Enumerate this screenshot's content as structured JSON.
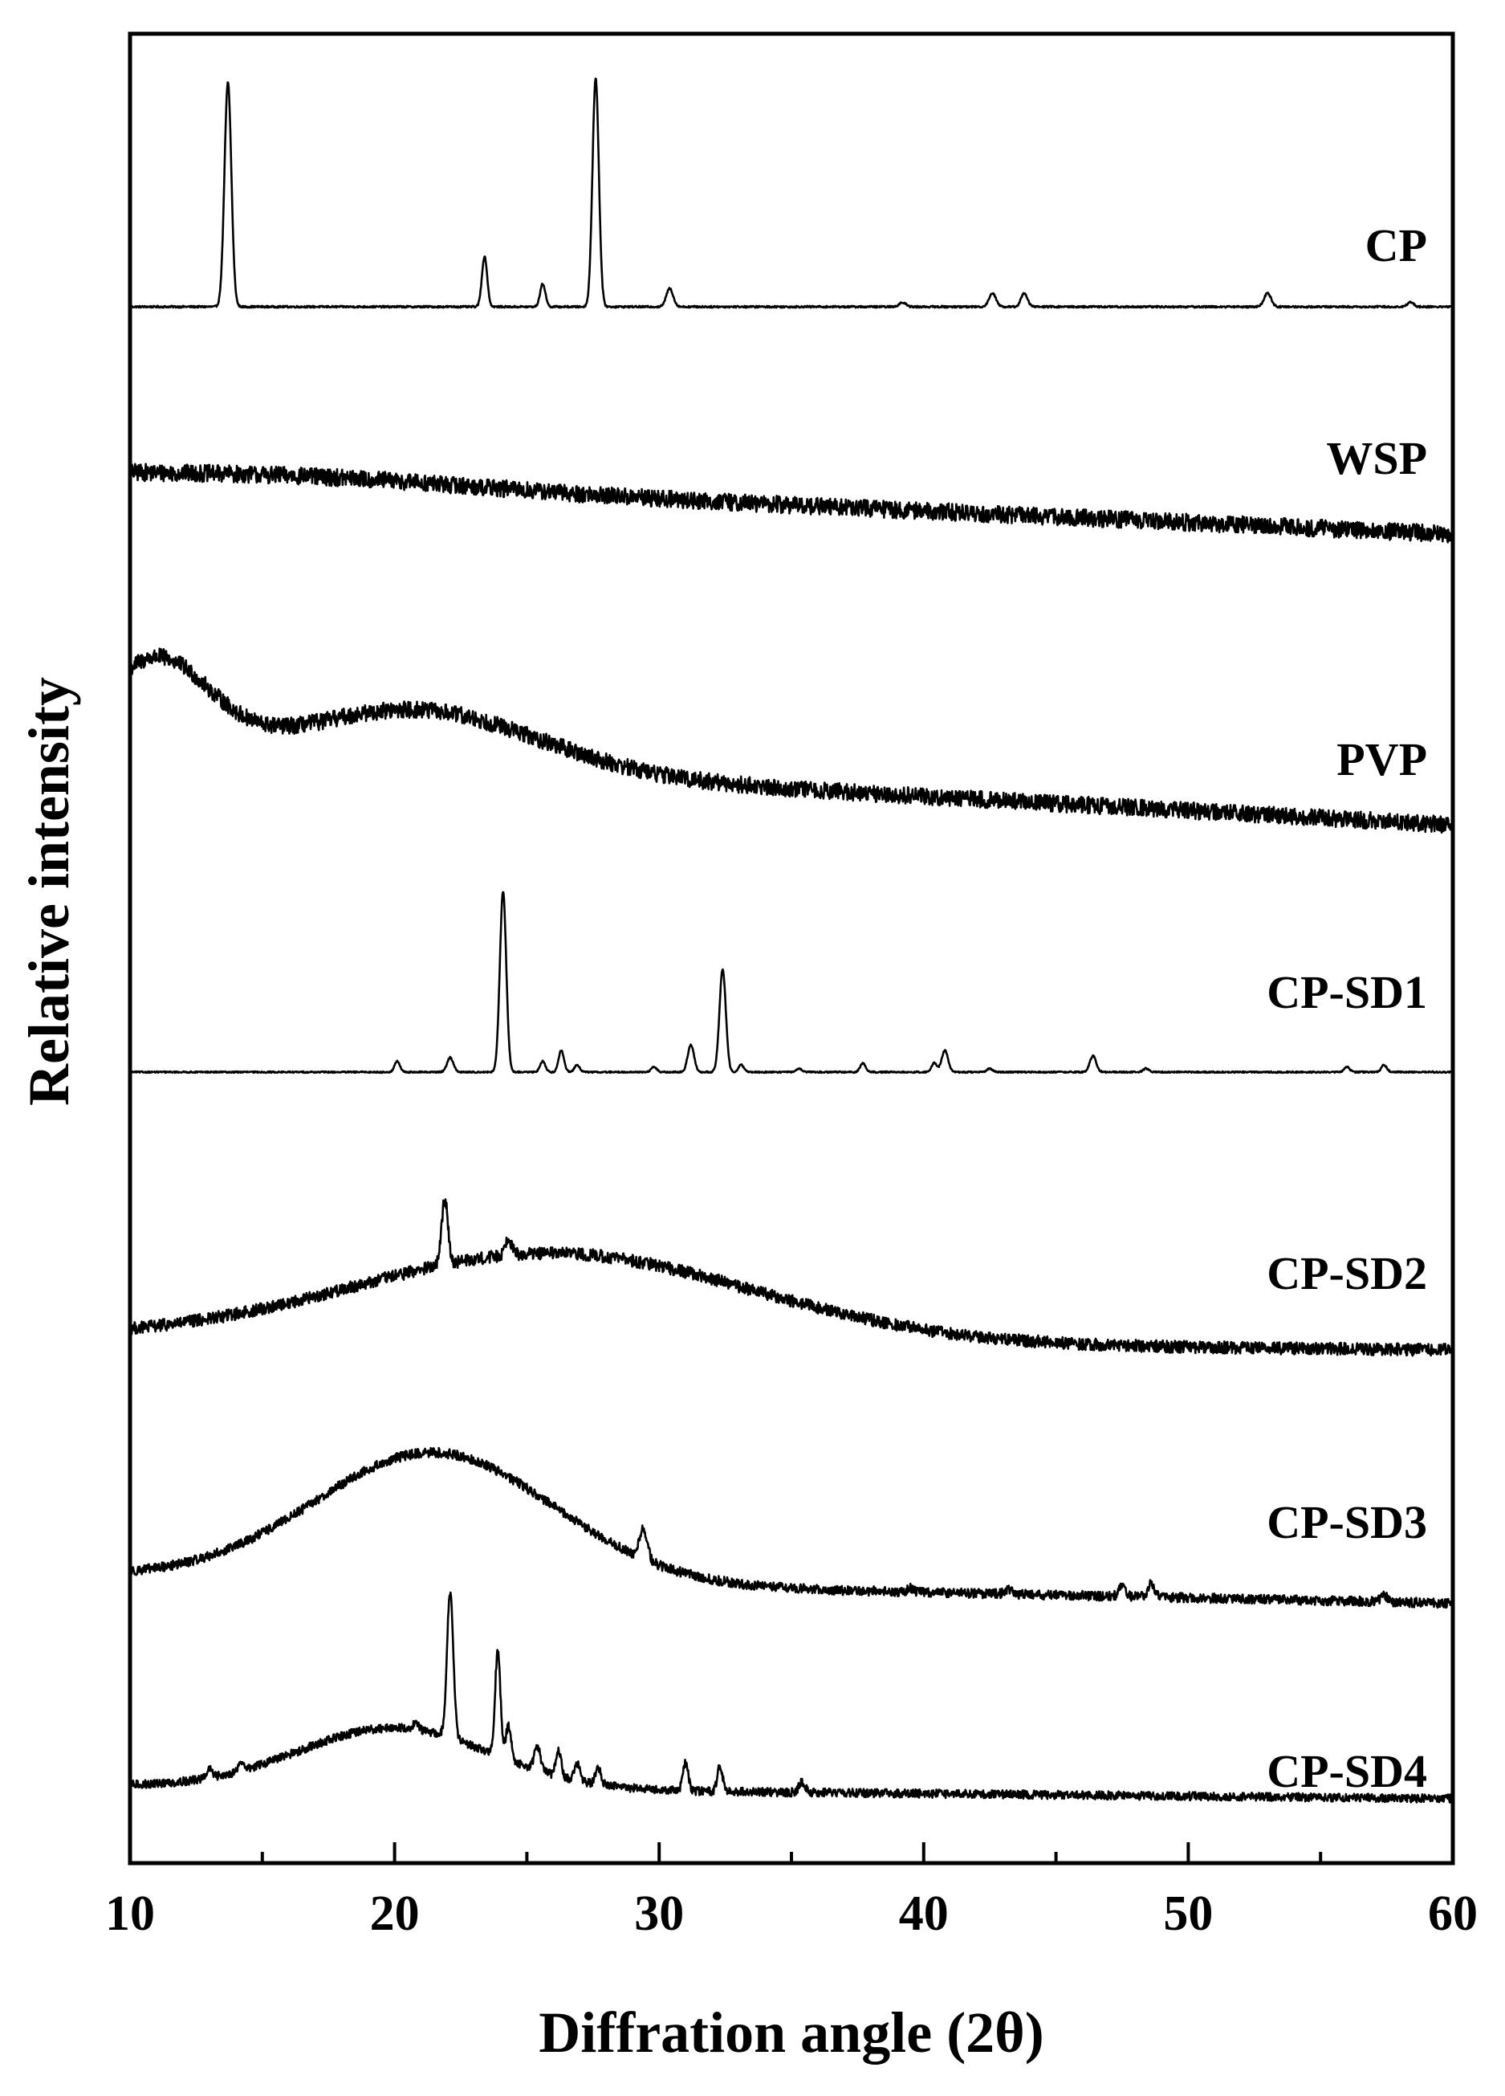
{
  "chart_data": {
    "type": "line",
    "xlabel": "Diffration angle (2θ)",
    "ylabel": "Relative intensity",
    "xlim": [
      10,
      60
    ],
    "x_ticks": [
      10,
      20,
      30,
      40,
      50,
      60
    ],
    "grid": false,
    "legend": "labels at right end of each trace",
    "line_color": "#000000",
    "series": [
      {
        "name": "CP",
        "baseline": 0.0,
        "slope": 0.0,
        "noise": 0.004,
        "humps": [],
        "peaks": [
          {
            "x": 13.7,
            "h": 0.98,
            "w": 0.13
          },
          {
            "x": 23.4,
            "h": 0.22,
            "w": 0.1
          },
          {
            "x": 25.6,
            "h": 0.1,
            "w": 0.1
          },
          {
            "x": 27.6,
            "h": 1.0,
            "w": 0.12
          },
          {
            "x": 30.4,
            "h": 0.08,
            "w": 0.13
          },
          {
            "x": 39.2,
            "h": 0.02,
            "w": 0.12
          },
          {
            "x": 42.6,
            "h": 0.06,
            "w": 0.13
          },
          {
            "x": 43.8,
            "h": 0.06,
            "w": 0.12
          },
          {
            "x": 53.0,
            "h": 0.06,
            "w": 0.13
          },
          {
            "x": 58.4,
            "h": 0.02,
            "w": 0.12
          }
        ]
      },
      {
        "name": "WSP",
        "baseline": 0.3,
        "slope": -0.006,
        "noise": 0.045,
        "humps": [
          {
            "x": 17.0,
            "h": 0.04,
            "w": 6.0
          }
        ],
        "peaks": []
      },
      {
        "name": "PVP",
        "baseline": 0.5,
        "slope": -0.0085,
        "noise": 0.05,
        "humps": [
          {
            "x": 11.0,
            "h": 0.55,
            "w": 2.0
          },
          {
            "x": 21.0,
            "h": 0.35,
            "w": 4.5
          }
        ],
        "peaks": []
      },
      {
        "name": "CP-SD1",
        "baseline": 0.0,
        "slope": 0.0,
        "noise": 0.004,
        "humps": [],
        "peaks": [
          {
            "x": 20.1,
            "h": 0.06,
            "w": 0.1
          },
          {
            "x": 22.1,
            "h": 0.08,
            "w": 0.12
          },
          {
            "x": 24.1,
            "h": 1.0,
            "w": 0.12
          },
          {
            "x": 25.6,
            "h": 0.06,
            "w": 0.1
          },
          {
            "x": 26.3,
            "h": 0.12,
            "w": 0.1
          },
          {
            "x": 26.9,
            "h": 0.04,
            "w": 0.1
          },
          {
            "x": 29.8,
            "h": 0.03,
            "w": 0.1
          },
          {
            "x": 31.2,
            "h": 0.15,
            "w": 0.12
          },
          {
            "x": 32.4,
            "h": 0.57,
            "w": 0.12
          },
          {
            "x": 33.1,
            "h": 0.04,
            "w": 0.1
          },
          {
            "x": 35.3,
            "h": 0.02,
            "w": 0.1
          },
          {
            "x": 37.7,
            "h": 0.05,
            "w": 0.1
          },
          {
            "x": 40.4,
            "h": 0.05,
            "w": 0.1
          },
          {
            "x": 40.8,
            "h": 0.12,
            "w": 0.12
          },
          {
            "x": 42.5,
            "h": 0.02,
            "w": 0.1
          },
          {
            "x": 46.4,
            "h": 0.09,
            "w": 0.12
          },
          {
            "x": 48.4,
            "h": 0.02,
            "w": 0.1
          },
          {
            "x": 56.0,
            "h": 0.03,
            "w": 0.1
          },
          {
            "x": 57.4,
            "h": 0.04,
            "w": 0.1
          }
        ]
      },
      {
        "name": "CP-SD2",
        "baseline": 0.12,
        "slope": -0.0014,
        "noise": 0.035,
        "humps": [
          {
            "x": 26.0,
            "h": 0.5,
            "w": 7.5
          }
        ],
        "peaks": [
          {
            "x": 21.9,
            "h": 0.37,
            "w": 0.12
          },
          {
            "x": 24.3,
            "h": 0.1,
            "w": 0.12
          }
        ]
      },
      {
        "name": "CP-SD3",
        "baseline": 0.28,
        "slope": -0.004,
        "noise": 0.035,
        "humps": [
          {
            "x": 21.5,
            "h": 0.95,
            "w": 4.5
          }
        ],
        "peaks": [
          {
            "x": 29.4,
            "h": 0.22,
            "w": 0.15
          },
          {
            "x": 39.5,
            "h": 0.03,
            "w": 0.12
          },
          {
            "x": 43.2,
            "h": 0.04,
            "w": 0.12
          },
          {
            "x": 47.5,
            "h": 0.09,
            "w": 0.12
          },
          {
            "x": 48.6,
            "h": 0.11,
            "w": 0.12
          },
          {
            "x": 57.4,
            "h": 0.05,
            "w": 0.12
          }
        ]
      },
      {
        "name": "CP-SD4",
        "baseline": 0.1,
        "slope": -0.0015,
        "noise": 0.025,
        "humps": [
          {
            "x": 20.0,
            "h": 0.36,
            "w": 3.6
          }
        ],
        "peaks": [
          {
            "x": 13.0,
            "h": 0.05,
            "w": 0.1
          },
          {
            "x": 14.2,
            "h": 0.05,
            "w": 0.1
          },
          {
            "x": 20.8,
            "h": 0.04,
            "w": 0.12
          },
          {
            "x": 22.1,
            "h": 0.86,
            "w": 0.12
          },
          {
            "x": 23.9,
            "h": 0.62,
            "w": 0.1
          },
          {
            "x": 24.3,
            "h": 0.2,
            "w": 0.1
          },
          {
            "x": 25.4,
            "h": 0.14,
            "w": 0.12
          },
          {
            "x": 26.2,
            "h": 0.16,
            "w": 0.1
          },
          {
            "x": 26.9,
            "h": 0.1,
            "w": 0.1
          },
          {
            "x": 27.7,
            "h": 0.1,
            "w": 0.1
          },
          {
            "x": 31.0,
            "h": 0.17,
            "w": 0.1
          },
          {
            "x": 32.3,
            "h": 0.15,
            "w": 0.1
          },
          {
            "x": 35.4,
            "h": 0.06,
            "w": 0.12
          }
        ]
      }
    ]
  }
}
